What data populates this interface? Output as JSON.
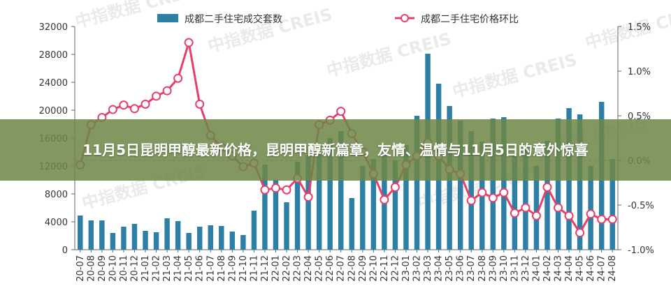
{
  "banner": {
    "title": "11月5日昆明甲醇最新价格，昆明甲醇新篇章，友情、温情与11月5日的意外惊喜"
  },
  "watermark": {
    "text": "中指数据 CREIS"
  },
  "chart_data": {
    "type": "bar",
    "categories": [
      "20-07",
      "20-08",
      "20-09",
      "20-10",
      "20-11",
      "20-12",
      "21-01",
      "21-02",
      "21-03",
      "21-04",
      "21-05",
      "21-06",
      "21-07",
      "21-08",
      "21-09",
      "21-10",
      "21-11",
      "21-12",
      "22-01",
      "22-02",
      "22-03",
      "22-04",
      "22-05",
      "22-06",
      "22-07",
      "22-08",
      "22-09",
      "22-10",
      "22-11",
      "22-12",
      "23-01",
      "23-02",
      "23-03",
      "23-04",
      "23-05",
      "23-06",
      "23-07",
      "23-08",
      "23-09",
      "23-10",
      "23-11",
      "23-12",
      "24-01",
      "24-02",
      "24-03",
      "24-04",
      "24-05",
      "24-06",
      "24-07",
      "24-08"
    ],
    "series": [
      {
        "name": "成都二手住宅成交套数",
        "kind": "bar",
        "axis": "left",
        "color": "#2e7fa6",
        "values": [
          4900,
          4200,
          4200,
          2400,
          3300,
          3700,
          2700,
          2500,
          4500,
          4100,
          2400,
          3300,
          3500,
          3400,
          2600,
          2100,
          5600,
          12200,
          10000,
          6800,
          12600,
          13500,
          14000,
          16000,
          17000,
          7400,
          12000,
          13000,
          13700,
          12800,
          15000,
          19200,
          28100,
          23800,
          20600,
          18500,
          17000,
          15500,
          18800,
          19000,
          13500,
          14500,
          12000,
          15600,
          18800,
          20300,
          19400,
          12000,
          21200,
          13000
        ]
      },
      {
        "name": "成都二手住宅价格环比",
        "kind": "line",
        "axis": "right",
        "color": "#e83e6c",
        "values": [
          -0.05,
          0.4,
          0.48,
          0.57,
          0.62,
          0.58,
          0.63,
          0.72,
          0.78,
          0.92,
          1.32,
          0.63,
          0.28,
          0.15,
          0.05,
          -0.07,
          -0.03,
          -0.33,
          -0.31,
          -0.33,
          -0.2,
          -0.41,
          0.4,
          0.45,
          0.55,
          0.3,
          0.1,
          -0.15,
          -0.44,
          -0.3,
          -0.05,
          0.05,
          0.2,
          0.05,
          -0.1,
          -0.15,
          -0.45,
          -0.36,
          -0.42,
          -0.36,
          -0.59,
          -0.53,
          -0.62,
          -0.3,
          -0.53,
          -0.62,
          -0.81,
          -0.6,
          -0.66,
          -0.66
        ]
      }
    ],
    "y_left": {
      "ylim": [
        0,
        32000
      ],
      "ticks": [
        "0",
        "4000",
        "8000",
        "12000",
        "16000",
        "20000",
        "24000",
        "28000",
        "32000"
      ]
    },
    "y_right": {
      "ylim": [
        -1.0,
        1.5
      ],
      "ticks": [
        "-1.0%",
        "-0.5%",
        "0.0%",
        "0.5%",
        "1.0%",
        "1.5%"
      ],
      "tick_values": [
        -1.0,
        -0.5,
        0.0,
        0.5,
        1.0,
        1.5
      ]
    },
    "title": "",
    "xlabel": "",
    "ylabel": "",
    "grid": false,
    "zero_line": "dashed",
    "legend": "top"
  }
}
